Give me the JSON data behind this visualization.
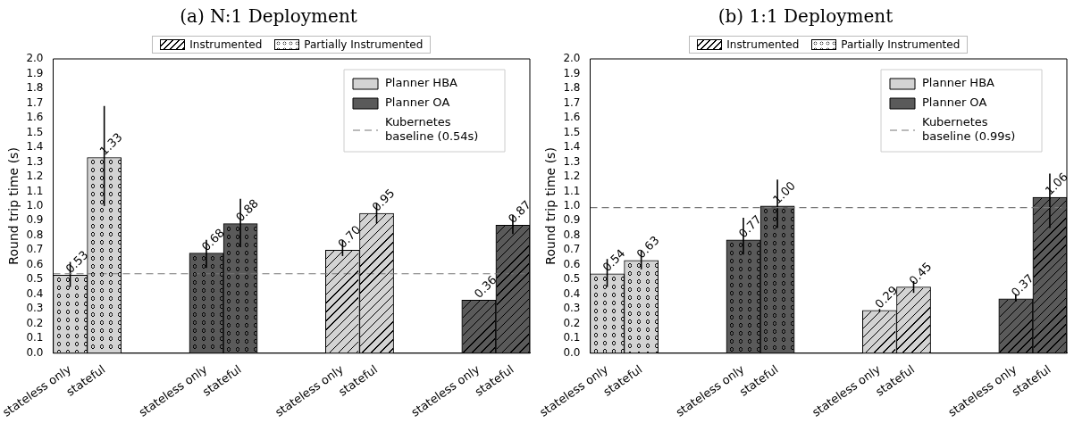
{
  "chart_data": [
    {
      "type": "bar",
      "title": "(a) N:1 Deployment",
      "ylabel": "Round trip time (s)",
      "categories": [
        "stateless only",
        "stateful",
        null,
        null,
        "stateless only",
        "stateful",
        null,
        null,
        "stateless only",
        "stateful",
        null,
        null,
        "stateless only",
        "stateful"
      ],
      "series": [
        {
          "name": "Planner HBA",
          "color": "#d3d3d3",
          "values": [
            0.53,
            1.33,
            null,
            null,
            null,
            null,
            null,
            null,
            null,
            null,
            null,
            null,
            null,
            null
          ],
          "errors": [
            [
              0.45,
              0.62
            ],
            [
              1.0,
              1.68
            ],
            null,
            null,
            null,
            null,
            null,
            null,
            null,
            null,
            null,
            null,
            null,
            null
          ],
          "value_labels": [
            "0.53",
            "1.33",
            null,
            null,
            null,
            null,
            null,
            null,
            null,
            null,
            null,
            null,
            null,
            null
          ]
        },
        {
          "name": "Planner OA",
          "color": "#5a5a5a",
          "values": [
            null,
            null,
            null,
            null,
            0.68,
            0.88,
            null,
            null,
            null,
            null,
            null,
            null,
            null,
            null
          ],
          "errors": [
            null,
            null,
            null,
            null,
            [
              0.58,
              0.77
            ],
            [
              0.72,
              1.05
            ],
            null,
            null,
            null,
            null,
            null,
            null,
            null,
            null
          ],
          "value_labels": [
            null,
            null,
            null,
            null,
            "0.68",
            "0.88",
            null,
            null,
            null,
            null,
            null,
            null,
            null,
            null
          ]
        },
        {
          "color": "#d3d3d3",
          "values": [
            null,
            null,
            null,
            null,
            null,
            null,
            null,
            null,
            0.7,
            0.95,
            null,
            null,
            null,
            null
          ],
          "errors": [
            null,
            null,
            null,
            null,
            null,
            null,
            null,
            null,
            [
              0.66,
              0.77
            ],
            [
              0.88,
              1.02
            ],
            null,
            null,
            null,
            null
          ],
          "value_labels": [
            null,
            null,
            null,
            null,
            null,
            null,
            null,
            null,
            "0.70",
            "0.95",
            null,
            null,
            null,
            null
          ]
        },
        {
          "color": "#5a5a5a",
          "values": [
            null,
            null,
            null,
            null,
            null,
            null,
            null,
            null,
            null,
            null,
            null,
            null,
            0.36,
            0.87
          ],
          "errors": [
            null,
            null,
            null,
            null,
            null,
            null,
            null,
            null,
            null,
            null,
            null,
            null,
            null,
            [
              0.81,
              0.94
            ]
          ],
          "value_labels": [
            null,
            null,
            null,
            null,
            null,
            null,
            null,
            null,
            null,
            null,
            null,
            null,
            "0.36",
            "0.87"
          ]
        }
      ],
      "ylim": [
        0,
        2
      ],
      "yticks": [
        {
          "value": 0,
          "label": "0.0"
        },
        {
          "value": 0.1,
          "label": "0.1"
        },
        {
          "value": 0.2,
          "label": "0.2"
        },
        {
          "value": 0.3,
          "label": "0.3"
        },
        {
          "value": 0.4,
          "label": "0.4"
        },
        {
          "value": 0.5,
          "label": "0.5"
        },
        {
          "value": 0.6,
          "label": "0.6"
        },
        {
          "value": 0.7,
          "label": "0.7"
        },
        {
          "value": 0.8,
          "label": "0.8"
        },
        {
          "value": 0.9,
          "label": "0.9"
        },
        {
          "value": 1,
          "label": "1.0"
        },
        {
          "value": 1.1,
          "label": "1.1"
        },
        {
          "value": 1.2,
          "label": "1.2"
        },
        {
          "value": 1.3,
          "label": "1.3"
        },
        {
          "value": 1.4,
          "label": "1.4"
        },
        {
          "value": 1.5,
          "label": "1.5"
        },
        {
          "value": 1.6,
          "label": "1.6"
        },
        {
          "value": 1.7,
          "label": "1.7"
        },
        {
          "value": 1.8,
          "label": "1.8"
        },
        {
          "value": 1.9,
          "label": "1.9"
        },
        {
          "value": 2,
          "label": "2.0"
        }
      ],
      "ref_lines": [
        {
          "axis": "y",
          "value": 0.54,
          "label": "Kubernetes baseline (0.54s)",
          "color": "#777777",
          "line_style": "dashed"
        }
      ],
      "annotations": [
        "Instrumented",
        "Partially Instrumented"
      ],
      "legend": "top right"
    },
    {
      "type": "bar",
      "title": "(b) 1:1 Deployment",
      "ylabel": "Round trip time (s)",
      "categories": [
        "stateless only",
        "stateful",
        null,
        null,
        "stateless only",
        "stateful",
        null,
        null,
        "stateless only",
        "stateful",
        null,
        null,
        "stateless only",
        "stateful"
      ],
      "series": [
        {
          "name": "Planner HBA",
          "color": "#d3d3d3",
          "values": [
            0.54,
            0.63,
            null,
            null,
            null,
            null,
            null,
            null,
            null,
            null,
            null,
            null,
            null,
            null
          ],
          "errors": [
            [
              0.45,
              0.64
            ],
            [
              0.57,
              0.7
            ],
            null,
            null,
            null,
            null,
            null,
            null,
            null,
            null,
            null,
            null,
            null,
            null
          ],
          "value_labels": [
            "0.54",
            "0.63",
            null,
            null,
            null,
            null,
            null,
            null,
            null,
            null,
            null,
            null,
            null,
            null
          ]
        },
        {
          "name": "Planner OA",
          "color": "#5a5a5a",
          "values": [
            null,
            null,
            null,
            null,
            0.77,
            1.0,
            null,
            null,
            null,
            null,
            null,
            null,
            null,
            null
          ],
          "errors": [
            null,
            null,
            null,
            null,
            [
              0.67,
              0.92
            ],
            [
              0.85,
              1.18
            ],
            null,
            null,
            null,
            null,
            null,
            null,
            null,
            null
          ],
          "value_labels": [
            null,
            null,
            null,
            null,
            "0.77",
            "1.00",
            null,
            null,
            null,
            null,
            null,
            null,
            null,
            null
          ]
        },
        {
          "color": "#d3d3d3",
          "values": [
            null,
            null,
            null,
            null,
            null,
            null,
            null,
            null,
            0.29,
            0.45,
            null,
            null,
            null,
            null
          ],
          "errors": [
            null,
            null,
            null,
            null,
            null,
            null,
            null,
            null,
            [
              0.28,
              0.3
            ],
            [
              0.41,
              0.49
            ],
            null,
            null,
            null,
            null
          ],
          "value_labels": [
            null,
            null,
            null,
            null,
            null,
            null,
            null,
            null,
            "0.29",
            "0.45",
            null,
            null,
            null,
            null
          ]
        },
        {
          "color": "#5a5a5a",
          "values": [
            null,
            null,
            null,
            null,
            null,
            null,
            null,
            null,
            null,
            null,
            null,
            null,
            0.37,
            1.06
          ],
          "errors": [
            null,
            null,
            null,
            null,
            null,
            null,
            null,
            null,
            null,
            null,
            null,
            null,
            [
              0.35,
              0.4
            ],
            [
              0.85,
              1.22
            ]
          ],
          "value_labels": [
            null,
            null,
            null,
            null,
            null,
            null,
            null,
            null,
            null,
            null,
            null,
            null,
            "0.37",
            "1.06"
          ]
        }
      ],
      "ylim": [
        0,
        2
      ],
      "yticks": [
        {
          "value": 0,
          "label": "0.0"
        },
        {
          "value": 0.1,
          "label": "0.1"
        },
        {
          "value": 0.2,
          "label": "0.2"
        },
        {
          "value": 0.3,
          "label": "0.3"
        },
        {
          "value": 0.4,
          "label": "0.4"
        },
        {
          "value": 0.5,
          "label": "0.5"
        },
        {
          "value": 0.6,
          "label": "0.6"
        },
        {
          "value": 0.7,
          "label": "0.7"
        },
        {
          "value": 0.8,
          "label": "0.8"
        },
        {
          "value": 0.9,
          "label": "0.9"
        },
        {
          "value": 1,
          "label": "1.0"
        },
        {
          "value": 1.1,
          "label": "1.1"
        },
        {
          "value": 1.2,
          "label": "1.2"
        },
        {
          "value": 1.3,
          "label": "1.3"
        },
        {
          "value": 1.4,
          "label": "1.4"
        },
        {
          "value": 1.5,
          "label": "1.5"
        },
        {
          "value": 1.6,
          "label": "1.6"
        },
        {
          "value": 1.7,
          "label": "1.7"
        },
        {
          "value": 1.8,
          "label": "1.8"
        },
        {
          "value": 1.9,
          "label": "1.9"
        },
        {
          "value": 2,
          "label": "2.0"
        }
      ],
      "ref_lines": [
        {
          "axis": "y",
          "value": 0.99,
          "label": "Kubernetes baseline (0.99s)",
          "color": "#777777",
          "line_style": "dashed"
        }
      ],
      "annotations": [
        "Instrumented",
        "Partially Instrumented"
      ],
      "legend": "top right"
    }
  ]
}
